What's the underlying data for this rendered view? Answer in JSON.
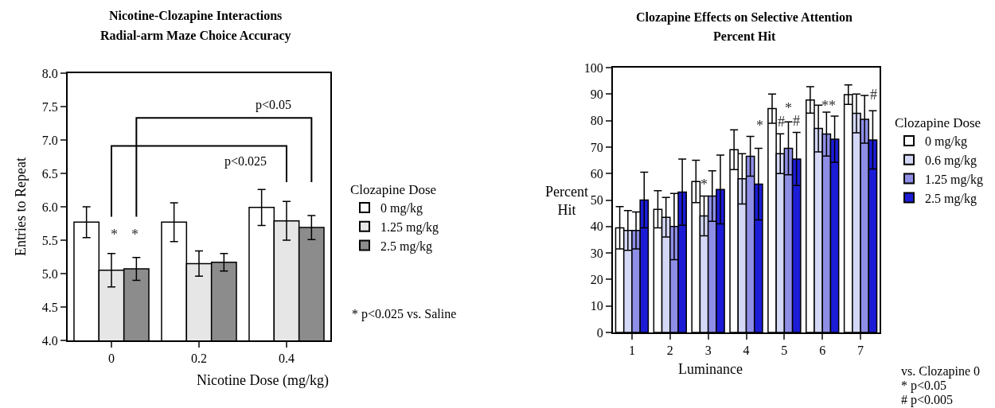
{
  "chart_data": [
    {
      "type": "bar",
      "title": "Nicotine-Clozapine Interactions",
      "subtitle": "Radial-arm Maze Choice Accuracy",
      "xlabel": "Nicotine Dose (mg/kg)",
      "ylabel": "Entries to Repeat",
      "legend_title": "Clozapine Dose",
      "categories": [
        "0",
        "0.2",
        "0.4"
      ],
      "series": [
        {
          "name": "0 mg/kg",
          "color": "#ffffff",
          "values": [
            5.77,
            5.77,
            5.99
          ],
          "errors": [
            0.23,
            0.29,
            0.27
          ]
        },
        {
          "name": "1.25 mg/kg",
          "color": "#e6e6e6",
          "values": [
            5.05,
            5.15,
            5.79
          ],
          "errors": [
            0.25,
            0.19,
            0.29
          ]
        },
        {
          "name": "2.5 mg/kg",
          "color": "#8c8c8c",
          "values": [
            5.07,
            5.17,
            5.69
          ],
          "errors": [
            0.17,
            0.13,
            0.18
          ]
        }
      ],
      "ylim": [
        4,
        8
      ],
      "yticks": [
        {
          "value": 4,
          "label": "4.0"
        },
        4.5,
        {
          "value": 5,
          "label": "5.0"
        },
        5.5,
        {
          "value": 6,
          "label": "6.0"
        },
        6.5,
        {
          "value": 7,
          "label": "7.0"
        },
        7.5,
        {
          "value": 8,
          "label": "8.0"
        }
      ],
      "grid": false,
      "legend": "right",
      "annotations": [
        "*",
        "*",
        "p<0.05",
        "p<0.025",
        "* p<0.025 vs. Saline"
      ]
    },
    {
      "type": "bar",
      "title": "Clozapine Effects on Selective Attention",
      "subtitle": "Percent Hit",
      "xlabel": "Luminance",
      "ylabel": "Percent Hit",
      "legend_title": "Clozapine Dose",
      "categories": [
        "1",
        "2",
        "3",
        "4",
        "5",
        "6",
        "7"
      ],
      "series": [
        {
          "name": "0 mg/kg",
          "color": "#ffffff",
          "values": [
            39.5,
            46.5,
            57,
            69,
            84.5,
            87.8,
            89.8
          ],
          "errors": [
            8,
            7,
            8,
            7.5,
            5.5,
            5,
            3.7
          ]
        },
        {
          "name": "0.6 mg/kg",
          "color": "#d4d8f6",
          "values": [
            38.5,
            43.5,
            44,
            58,
            67.5,
            77,
            82.7
          ],
          "errors": [
            7.5,
            7.5,
            7.5,
            9.5,
            7.5,
            8.8,
            7.3
          ]
        },
        {
          "name": "1.25 mg/kg",
          "color": "#8e8ee6",
          "values": [
            38.5,
            40,
            51.5,
            66.5,
            69.5,
            74.9,
            80.5
          ],
          "errors": [
            7,
            12.5,
            9.5,
            7.5,
            10,
            8.3,
            9
          ]
        },
        {
          "name": "2.5 mg/kg",
          "color": "#1c1cd6",
          "values": [
            50,
            53,
            54,
            56,
            65.5,
            73,
            72.7
          ],
          "errors": [
            10.5,
            12.5,
            13,
            13.5,
            10,
            8.7,
            11
          ]
        }
      ],
      "ylim": [
        0,
        100
      ],
      "yticks": [
        0,
        10,
        20,
        30,
        40,
        50,
        60,
        70,
        80,
        90,
        100
      ],
      "grid": false,
      "legend": "right",
      "annotations": [
        "*",
        "*",
        "#",
        "*",
        "#",
        "**",
        "#",
        "vs. Clozapine 0",
        "* p<0.05",
        "# p<0.005"
      ]
    }
  ]
}
